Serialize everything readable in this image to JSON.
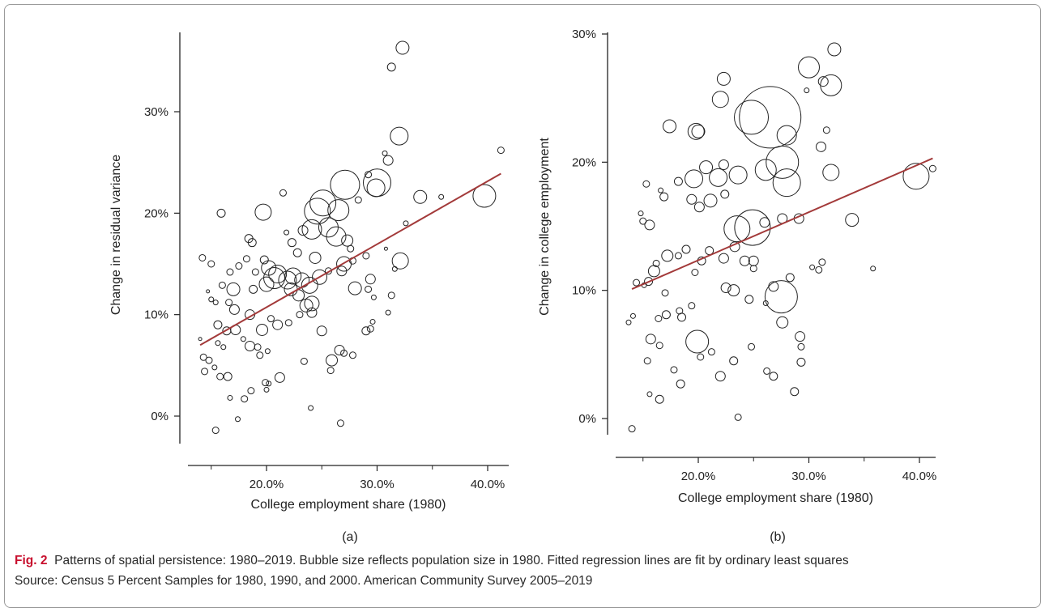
{
  "chart_data": [
    {
      "type": "scatter",
      "panel_label": "(a)",
      "xlabel": "College employment share (1980)",
      "ylabel": "Change in residual variance",
      "xlim": [
        13.5,
        41.5
      ],
      "ylim": [
        -2.5,
        38
      ],
      "xticks": [
        20,
        30,
        40
      ],
      "xtick_labels": [
        "20.0%",
        "30.0%",
        "40.0%"
      ],
      "yticks": [
        0,
        10,
        20,
        30
      ],
      "ytick_labels": [
        "0%",
        "10%",
        "20%",
        "30%"
      ],
      "fit_line": {
        "x": [
          14.0,
          41.2
        ],
        "y": [
          7.0,
          23.9
        ],
        "color": "#a33a3a"
      },
      "bubble_size_note": "relative size",
      "points": [
        [
          32.3,
          36.3,
          8
        ],
        [
          31.3,
          34.4,
          5
        ],
        [
          32.0,
          27.6,
          11
        ],
        [
          30.7,
          25.9,
          3
        ],
        [
          41.2,
          26.2,
          4
        ],
        [
          31.0,
          25.2,
          6
        ],
        [
          39.7,
          21.7,
          14
        ],
        [
          33.9,
          21.6,
          8
        ],
        [
          35.8,
          21.6,
          3
        ],
        [
          30.0,
          23.0,
          17
        ],
        [
          29.9,
          22.5,
          11
        ],
        [
          27.1,
          22.8,
          18
        ],
        [
          25.1,
          21.0,
          16
        ],
        [
          24.6,
          20.2,
          16
        ],
        [
          26.5,
          20.3,
          13
        ],
        [
          25.6,
          18.6,
          12
        ],
        [
          24.1,
          18.4,
          12
        ],
        [
          26.3,
          17.7,
          12
        ],
        [
          23.3,
          18.3,
          6
        ],
        [
          27.3,
          17.3,
          7
        ],
        [
          28.3,
          21.3,
          4
        ],
        [
          29.2,
          23.8,
          4
        ],
        [
          32.6,
          19.0,
          3
        ],
        [
          19.7,
          20.1,
          10
        ],
        [
          21.5,
          22.0,
          4
        ],
        [
          15.9,
          20.0,
          5
        ],
        [
          22.3,
          17.1,
          5
        ],
        [
          18.4,
          17.5,
          5
        ],
        [
          18.7,
          17.1,
          5
        ],
        [
          21.8,
          18.1,
          3
        ],
        [
          30.8,
          16.5,
          2
        ],
        [
          29.0,
          15.8,
          4
        ],
        [
          32.1,
          15.3,
          10
        ],
        [
          31.6,
          14.5,
          3
        ],
        [
          27.0,
          15.0,
          9
        ],
        [
          27.6,
          16.5,
          4
        ],
        [
          27.8,
          15.3,
          4
        ],
        [
          24.4,
          15.6,
          7
        ],
        [
          22.8,
          16.1,
          5
        ],
        [
          20.2,
          14.6,
          9
        ],
        [
          21.0,
          14.0,
          11
        ],
        [
          20.7,
          13.6,
          13
        ],
        [
          20.0,
          13.0,
          9
        ],
        [
          21.9,
          13.4,
          11
        ],
        [
          22.4,
          13.8,
          10
        ],
        [
          23.2,
          13.4,
          9
        ],
        [
          23.9,
          12.9,
          10
        ],
        [
          24.8,
          13.7,
          9
        ],
        [
          25.6,
          14.3,
          4
        ],
        [
          22.2,
          12.5,
          8
        ],
        [
          22.9,
          11.9,
          7
        ],
        [
          24.1,
          11.1,
          9
        ],
        [
          23.6,
          10.9,
          8
        ],
        [
          24.1,
          10.2,
          6
        ],
        [
          23.0,
          10.0,
          4
        ],
        [
          22.0,
          9.2,
          4
        ],
        [
          21.0,
          9.0,
          6
        ],
        [
          20.4,
          9.6,
          4
        ],
        [
          19.6,
          8.5,
          7
        ],
        [
          18.5,
          10.0,
          6
        ],
        [
          18.8,
          12.5,
          5
        ],
        [
          17.0,
          12.5,
          8
        ],
        [
          16.0,
          12.9,
          4
        ],
        [
          16.7,
          14.2,
          4
        ],
        [
          17.5,
          14.8,
          4
        ],
        [
          19.8,
          15.4,
          5
        ],
        [
          19.0,
          14.2,
          4
        ],
        [
          18.2,
          15.5,
          4
        ],
        [
          14.2,
          15.6,
          4
        ],
        [
          15.0,
          15.0,
          4
        ],
        [
          15.0,
          11.5,
          3
        ],
        [
          15.4,
          11.2,
          3
        ],
        [
          14.7,
          12.3,
          2
        ],
        [
          14.0,
          7.6,
          2
        ],
        [
          15.6,
          7.2,
          3
        ],
        [
          16.1,
          6.8,
          3
        ],
        [
          16.4,
          8.4,
          5
        ],
        [
          15.6,
          9.0,
          5
        ],
        [
          18.5,
          6.9,
          6
        ],
        [
          19.2,
          6.8,
          4
        ],
        [
          19.4,
          6.0,
          4
        ],
        [
          17.9,
          7.6,
          3
        ],
        [
          20.1,
          6.4,
          3
        ],
        [
          17.2,
          8.5,
          6
        ],
        [
          17.1,
          10.5,
          6
        ],
        [
          16.6,
          11.2,
          4
        ],
        [
          14.3,
          5.8,
          4
        ],
        [
          14.8,
          5.5,
          4
        ],
        [
          15.3,
          4.8,
          3
        ],
        [
          14.4,
          4.4,
          4
        ],
        [
          15.8,
          3.9,
          4
        ],
        [
          16.5,
          3.9,
          5
        ],
        [
          19.9,
          3.3,
          4
        ],
        [
          20.2,
          3.2,
          3
        ],
        [
          21.2,
          3.8,
          6
        ],
        [
          16.7,
          1.8,
          3
        ],
        [
          18.0,
          1.7,
          4
        ],
        [
          18.6,
          2.5,
          4
        ],
        [
          20.0,
          2.6,
          3
        ],
        [
          17.4,
          -0.3,
          3
        ],
        [
          15.4,
          -1.4,
          4
        ],
        [
          23.4,
          5.4,
          4
        ],
        [
          24.0,
          0.8,
          3
        ],
        [
          26.7,
          -0.7,
          4
        ],
        [
          25.8,
          4.5,
          4
        ],
        [
          25.9,
          5.5,
          7
        ],
        [
          26.6,
          6.5,
          6
        ],
        [
          27.0,
          6.2,
          4
        ],
        [
          27.8,
          6.0,
          4
        ],
        [
          29.0,
          8.4,
          5
        ],
        [
          29.4,
          8.6,
          4
        ],
        [
          29.6,
          9.3,
          3
        ],
        [
          25.0,
          8.4,
          6
        ],
        [
          31.0,
          10.2,
          3
        ],
        [
          31.3,
          11.9,
          4
        ],
        [
          28.0,
          12.6,
          8
        ],
        [
          29.4,
          13.5,
          6
        ],
        [
          29.2,
          12.5,
          4
        ],
        [
          29.7,
          11.7,
          3
        ],
        [
          26.8,
          14.3,
          6
        ]
      ]
    },
    {
      "type": "scatter",
      "panel_label": "(b)",
      "xlabel": "College employment share (1980)",
      "ylabel": "Change in college employment",
      "xlim": [
        13.5,
        41.5
      ],
      "ylim": [
        -1.5,
        30
      ],
      "xticks": [
        20,
        30,
        40
      ],
      "xtick_labels": [
        "20.0%",
        "30.0%",
        "40.0%"
      ],
      "yticks": [
        0,
        10,
        20,
        30
      ],
      "ytick_labels": [
        "0%",
        "10%",
        "20%",
        "30%"
      ],
      "fit_line": {
        "x": [
          14.0,
          41.2
        ],
        "y": [
          10.1,
          20.3
        ],
        "color": "#a33a3a"
      },
      "bubble_size_note": "relative size",
      "points": [
        [
          32.3,
          28.8,
          8
        ],
        [
          30.0,
          27.4,
          13
        ],
        [
          32.0,
          26.0,
          13
        ],
        [
          31.3,
          26.3,
          6
        ],
        [
          29.8,
          25.6,
          3
        ],
        [
          22.3,
          26.5,
          8
        ],
        [
          22.0,
          24.9,
          10
        ],
        [
          26.5,
          23.5,
          38
        ],
        [
          24.8,
          23.5,
          21
        ],
        [
          28.0,
          22.1,
          12
        ],
        [
          31.6,
          22.5,
          4
        ],
        [
          31.1,
          21.2,
          6
        ],
        [
          19.8,
          22.4,
          10
        ],
        [
          20.0,
          22.4,
          8
        ],
        [
          17.4,
          22.8,
          8
        ],
        [
          27.6,
          20.0,
          20
        ],
        [
          28.0,
          18.4,
          17
        ],
        [
          32.0,
          19.2,
          10
        ],
        [
          26.1,
          19.4,
          13
        ],
        [
          23.6,
          19.0,
          11
        ],
        [
          22.3,
          19.8,
          6
        ],
        [
          21.8,
          18.8,
          11
        ],
        [
          20.7,
          19.6,
          8
        ],
        [
          19.6,
          18.7,
          11
        ],
        [
          21.1,
          17.0,
          8
        ],
        [
          22.4,
          17.5,
          5
        ],
        [
          20.1,
          16.5,
          6
        ],
        [
          19.4,
          17.1,
          6
        ],
        [
          18.2,
          18.5,
          5
        ],
        [
          16.9,
          17.3,
          5
        ],
        [
          15.3,
          18.3,
          4
        ],
        [
          16.6,
          17.8,
          3
        ],
        [
          23.5,
          14.8,
          16
        ],
        [
          24.9,
          14.9,
          22
        ],
        [
          26.0,
          15.3,
          6
        ],
        [
          27.6,
          15.6,
          6
        ],
        [
          29.1,
          15.6,
          6
        ],
        [
          33.9,
          15.5,
          8
        ],
        [
          15.6,
          15.1,
          6
        ],
        [
          15.0,
          15.4,
          4
        ],
        [
          14.8,
          16.0,
          3
        ],
        [
          18.2,
          12.7,
          4
        ],
        [
          18.9,
          13.2,
          5
        ],
        [
          20.3,
          12.3,
          5
        ],
        [
          21.0,
          13.1,
          5
        ],
        [
          22.3,
          12.5,
          6
        ],
        [
          23.3,
          13.4,
          6
        ],
        [
          24.2,
          12.3,
          6
        ],
        [
          25.0,
          12.3,
          6
        ],
        [
          19.7,
          11.4,
          4
        ],
        [
          17.2,
          12.7,
          7
        ],
        [
          16.2,
          12.1,
          4
        ],
        [
          15.5,
          10.7,
          5
        ],
        [
          16.0,
          11.5,
          7
        ],
        [
          14.4,
          10.6,
          4
        ],
        [
          15.1,
          10.4,
          3
        ],
        [
          18.5,
          7.9,
          5
        ],
        [
          18.3,
          8.4,
          4
        ],
        [
          19.4,
          8.8,
          4
        ],
        [
          19.9,
          6.0,
          14
        ],
        [
          17.1,
          8.1,
          5
        ],
        [
          16.4,
          7.8,
          4
        ],
        [
          15.7,
          6.2,
          6
        ],
        [
          16.5,
          5.7,
          4
        ],
        [
          15.4,
          4.5,
          4
        ],
        [
          16.5,
          1.5,
          5
        ],
        [
          17.8,
          3.8,
          4
        ],
        [
          18.4,
          2.7,
          5
        ],
        [
          20.2,
          4.8,
          4
        ],
        [
          21.2,
          5.2,
          4
        ],
        [
          22.0,
          3.3,
          6
        ],
        [
          23.2,
          4.5,
          5
        ],
        [
          23.6,
          0.1,
          4
        ],
        [
          24.8,
          5.6,
          4
        ],
        [
          26.2,
          3.7,
          4
        ],
        [
          26.8,
          3.3,
          5
        ],
        [
          27.6,
          7.5,
          7
        ],
        [
          26.8,
          10.3,
          6
        ],
        [
          27.5,
          9.5,
          20
        ],
        [
          28.3,
          11.0,
          5
        ],
        [
          29.2,
          6.4,
          6
        ],
        [
          29.3,
          5.6,
          4
        ],
        [
          29.3,
          4.4,
          5
        ],
        [
          28.7,
          2.1,
          5
        ],
        [
          30.3,
          11.8,
          3
        ],
        [
          30.9,
          11.6,
          4
        ],
        [
          31.2,
          12.2,
          4
        ],
        [
          35.8,
          11.7,
          3
        ],
        [
          39.7,
          18.9,
          16
        ],
        [
          41.2,
          19.5,
          4
        ],
        [
          14.1,
          8.0,
          3
        ],
        [
          13.7,
          7.5,
          3
        ],
        [
          14.0,
          -0.8,
          4
        ],
        [
          15.6,
          1.9,
          3
        ],
        [
          17.0,
          9.8,
          4
        ],
        [
          22.5,
          10.2,
          6
        ],
        [
          23.2,
          10.0,
          7
        ],
        [
          24.6,
          9.3,
          5
        ],
        [
          25.0,
          11.7,
          4
        ],
        [
          26.1,
          9.0,
          3
        ]
      ]
    }
  ],
  "caption": {
    "label": "Fig. 2",
    "line1": "Patterns of spatial persistence: 1980–2019. Bubble size reflects population size in 1980. Fitted regression lines are fit by ordinary least squares",
    "line2": "Source: Census 5 Percent Samples for 1980, 1990, and 2000. American Community Survey 2005–2019"
  }
}
